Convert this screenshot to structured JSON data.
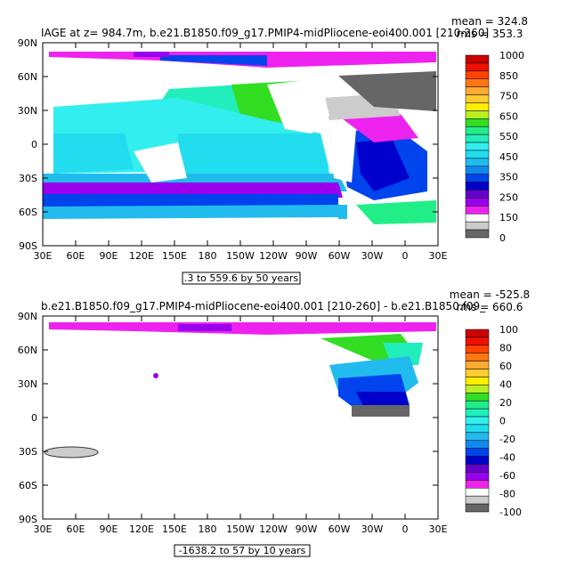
{
  "chart_data": [
    {
      "type": "heatmap",
      "title": "IAGE at z= 984.7m, b.e21.B1850.f09_g17.PMIP4-midPliocene-eoi400.001 [210-260]",
      "stats": [
        "mean = 324.8",
        "rms = 353.3"
      ],
      "range_note": ".3 to 559.6 by 50 years",
      "xticks": [
        "30E",
        "60E",
        "90E",
        "120E",
        "150E",
        "180",
        "150W",
        "120W",
        "90W",
        "60W",
        "30W",
        "0",
        "30E"
      ],
      "yticks": [
        "90N",
        "60N",
        "30N",
        "0",
        "30S",
        "60S",
        "90S"
      ],
      "colorbar": {
        "labels": [
          "1000",
          "850",
          "750",
          "650",
          "550",
          "450",
          "350",
          "250",
          "150",
          "0"
        ],
        "colors": [
          "#cc0000",
          "#ee1100",
          "#ff4400",
          "#ff7711",
          "#ffaa33",
          "#ffcc33",
          "#ffee00",
          "#bbee22",
          "#33dd22",
          "#22ee88",
          "#22eebb",
          "#33eeee",
          "#22ddee",
          "#22bbee",
          "#1188ee",
          "#0044ee",
          "#0000cc",
          "#6600cc",
          "#9900ee",
          "#ee22ee",
          "#ffffff",
          "#cccccc",
          "#666666"
        ]
      }
    },
    {
      "type": "heatmap",
      "title": "b.e21.B1850.f09_g17.PMIP4-midPliocene-eoi400.001 [210-260] - b.e21.B1850.f09_",
      "stats": [
        "mean = -525.8",
        "rms = 660.6"
      ],
      "range_note": "-1638.2 to 57 by 10 years",
      "xticks": [
        "30E",
        "60E",
        "90E",
        "120E",
        "150E",
        "180",
        "150W",
        "120W",
        "90W",
        "60W",
        "30W",
        "0",
        "30E"
      ],
      "yticks": [
        "90N",
        "60N",
        "30N",
        "0",
        "30S",
        "60S",
        "90S"
      ],
      "colorbar": {
        "labels": [
          "100",
          "80",
          "60",
          "40",
          "20",
          "0",
          "-20",
          "-40",
          "-60",
          "-80",
          "-100"
        ],
        "colors": [
          "#cc0000",
          "#ee1100",
          "#ff4400",
          "#ff7711",
          "#ffaa33",
          "#ffcc33",
          "#ffee00",
          "#bbee22",
          "#33dd22",
          "#22ee88",
          "#22eebb",
          "#33eeee",
          "#22ddee",
          "#22bbee",
          "#1188ee",
          "#0044ee",
          "#0000cc",
          "#6600cc",
          "#9900ee",
          "#ee22ee",
          "#ffffff",
          "#cccccc",
          "#666666"
        ]
      }
    }
  ]
}
